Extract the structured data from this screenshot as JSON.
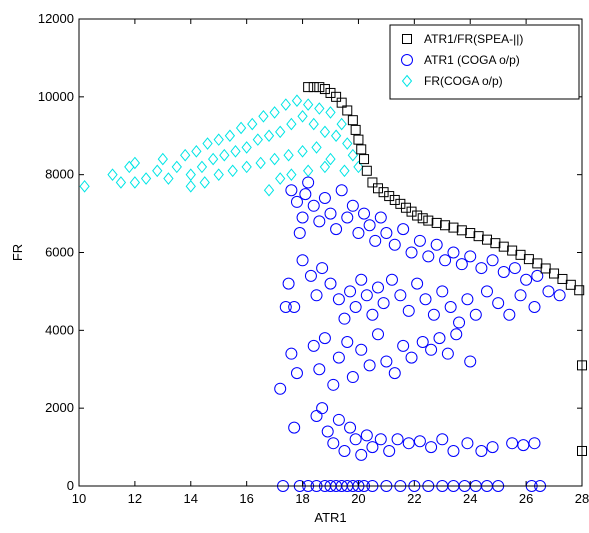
{
  "chart_data": {
    "type": "scatter",
    "xlabel": "ATR1",
    "ylabel": "FR",
    "xlim": [
      10,
      28
    ],
    "ylim": [
      0,
      12000
    ],
    "xticks": [
      10,
      12,
      14,
      16,
      18,
      20,
      22,
      24,
      26,
      28
    ],
    "yticks": [
      0,
      2000,
      4000,
      6000,
      8000,
      10000,
      12000
    ],
    "grid": false,
    "legend_position": "top-right",
    "series": [
      {
        "name": "ATR1/FR(SPEA-||)",
        "marker": "square",
        "color": "#000000",
        "points": [
          [
            18.2,
            10250
          ],
          [
            18.4,
            10250
          ],
          [
            18.6,
            10250
          ],
          [
            18.8,
            10200
          ],
          [
            19.0,
            10100
          ],
          [
            19.2,
            10000
          ],
          [
            19.4,
            9850
          ],
          [
            19.6,
            9650
          ],
          [
            19.8,
            9400
          ],
          [
            19.9,
            9150
          ],
          [
            20.0,
            8900
          ],
          [
            20.1,
            8650
          ],
          [
            20.2,
            8400
          ],
          [
            20.3,
            8100
          ],
          [
            20.5,
            7800
          ],
          [
            20.7,
            7650
          ],
          [
            20.9,
            7550
          ],
          [
            21.1,
            7450
          ],
          [
            21.3,
            7350
          ],
          [
            21.5,
            7250
          ],
          [
            21.7,
            7150
          ],
          [
            21.9,
            7050
          ],
          [
            22.1,
            6950
          ],
          [
            22.3,
            6880
          ],
          [
            22.5,
            6820
          ],
          [
            22.8,
            6760
          ],
          [
            23.1,
            6700
          ],
          [
            23.4,
            6640
          ],
          [
            23.7,
            6570
          ],
          [
            24.0,
            6500
          ],
          [
            24.3,
            6420
          ],
          [
            24.6,
            6330
          ],
          [
            24.9,
            6240
          ],
          [
            25.2,
            6150
          ],
          [
            25.5,
            6050
          ],
          [
            25.8,
            5940
          ],
          [
            26.1,
            5830
          ],
          [
            26.4,
            5720
          ],
          [
            26.7,
            5590
          ],
          [
            27.0,
            5460
          ],
          [
            27.3,
            5320
          ],
          [
            27.6,
            5170
          ],
          [
            27.9,
            5030
          ],
          [
            28.0,
            3100
          ],
          [
            28.0,
            900
          ]
        ]
      },
      {
        "name": "ATR1 (COGA o/p)",
        "marker": "circle",
        "color": "#0000ff",
        "points": [
          [
            17.6,
            7600
          ],
          [
            17.8,
            7300
          ],
          [
            18.0,
            6900
          ],
          [
            18.1,
            7500
          ],
          [
            17.9,
            6500
          ],
          [
            18.2,
            7800
          ],
          [
            18.4,
            7200
          ],
          [
            18.6,
            6800
          ],
          [
            18.8,
            7400
          ],
          [
            19.0,
            7000
          ],
          [
            19.2,
            6600
          ],
          [
            19.4,
            7600
          ],
          [
            19.6,
            6900
          ],
          [
            19.8,
            7200
          ],
          [
            20.0,
            6500
          ],
          [
            20.2,
            7000
          ],
          [
            20.4,
            6700
          ],
          [
            20.6,
            6300
          ],
          [
            20.8,
            6900
          ],
          [
            21.0,
            6500
          ],
          [
            21.3,
            6200
          ],
          [
            21.6,
            6600
          ],
          [
            21.9,
            6000
          ],
          [
            22.2,
            6300
          ],
          [
            22.5,
            5900
          ],
          [
            22.8,
            6200
          ],
          [
            23.1,
            5800
          ],
          [
            23.4,
            6000
          ],
          [
            23.7,
            5700
          ],
          [
            24.0,
            5900
          ],
          [
            24.4,
            5600
          ],
          [
            24.8,
            5800
          ],
          [
            25.2,
            5500
          ],
          [
            25.6,
            5600
          ],
          [
            26.0,
            5300
          ],
          [
            26.4,
            5400
          ],
          [
            26.8,
            5000
          ],
          [
            27.2,
            4900
          ],
          [
            17.5,
            5200
          ],
          [
            17.7,
            4600
          ],
          [
            18.0,
            5800
          ],
          [
            18.3,
            5400
          ],
          [
            18.5,
            4900
          ],
          [
            18.7,
            5600
          ],
          [
            19.0,
            5200
          ],
          [
            19.3,
            4800
          ],
          [
            19.5,
            4300
          ],
          [
            19.7,
            5000
          ],
          [
            19.9,
            4600
          ],
          [
            20.1,
            5300
          ],
          [
            20.3,
            4900
          ],
          [
            20.5,
            4400
          ],
          [
            20.7,
            5100
          ],
          [
            20.9,
            4700
          ],
          [
            21.2,
            5300
          ],
          [
            21.5,
            4900
          ],
          [
            21.8,
            4500
          ],
          [
            22.1,
            5200
          ],
          [
            22.4,
            4800
          ],
          [
            22.7,
            4400
          ],
          [
            23.0,
            5000
          ],
          [
            23.3,
            4600
          ],
          [
            23.6,
            4200
          ],
          [
            23.9,
            4800
          ],
          [
            24.2,
            4400
          ],
          [
            24.6,
            5000
          ],
          [
            25.0,
            4700
          ],
          [
            25.4,
            4400
          ],
          [
            25.8,
            4900
          ],
          [
            26.3,
            4600
          ],
          [
            17.4,
            4600
          ],
          [
            17.6,
            3400
          ],
          [
            17.8,
            2900
          ],
          [
            17.2,
            2500
          ],
          [
            17.7,
            1500
          ],
          [
            18.4,
            3600
          ],
          [
            18.6,
            3000
          ],
          [
            18.8,
            3800
          ],
          [
            19.1,
            2600
          ],
          [
            19.3,
            3300
          ],
          [
            19.6,
            3700
          ],
          [
            19.8,
            2800
          ],
          [
            20.1,
            3500
          ],
          [
            20.4,
            3100
          ],
          [
            20.7,
            3900
          ],
          [
            21.0,
            3200
          ],
          [
            21.3,
            2900
          ],
          [
            21.6,
            3600
          ],
          [
            21.9,
            3300
          ],
          [
            22.3,
            3700
          ],
          [
            22.6,
            3500
          ],
          [
            22.9,
            3800
          ],
          [
            23.2,
            3400
          ],
          [
            23.5,
            3900
          ],
          [
            24.0,
            3200
          ],
          [
            18.5,
            1800
          ],
          [
            18.7,
            2000
          ],
          [
            18.9,
            1400
          ],
          [
            19.1,
            1100
          ],
          [
            19.3,
            1700
          ],
          [
            19.5,
            900
          ],
          [
            19.7,
            1500
          ],
          [
            19.9,
            1200
          ],
          [
            20.1,
            800
          ],
          [
            20.3,
            1300
          ],
          [
            20.5,
            1000
          ],
          [
            20.8,
            1200
          ],
          [
            21.1,
            900
          ],
          [
            21.4,
            1200
          ],
          [
            21.8,
            1100
          ],
          [
            22.2,
            1150
          ],
          [
            22.6,
            1000
          ],
          [
            23.0,
            1200
          ],
          [
            23.4,
            900
          ],
          [
            23.9,
            1100
          ],
          [
            24.4,
            900
          ],
          [
            24.8,
            1000
          ],
          [
            25.5,
            1100
          ],
          [
            25.9,
            1050
          ],
          [
            26.3,
            1100
          ],
          [
            17.3,
            0
          ],
          [
            17.9,
            0
          ],
          [
            18.2,
            0
          ],
          [
            18.5,
            0
          ],
          [
            18.8,
            0
          ],
          [
            19.0,
            0
          ],
          [
            19.2,
            0
          ],
          [
            19.4,
            0
          ],
          [
            19.6,
            0
          ],
          [
            19.8,
            0
          ],
          [
            20.0,
            0
          ],
          [
            20.2,
            0
          ],
          [
            20.5,
            0
          ],
          [
            21.0,
            0
          ],
          [
            21.5,
            0
          ],
          [
            22.0,
            0
          ],
          [
            22.5,
            0
          ],
          [
            23.0,
            0
          ],
          [
            23.4,
            0
          ],
          [
            23.8,
            0
          ],
          [
            24.2,
            0
          ],
          [
            24.6,
            0
          ],
          [
            25.0,
            0
          ],
          [
            26.2,
            0
          ],
          [
            26.5,
            0
          ]
        ]
      },
      {
        "name": "FR(COGA o/p)",
        "marker": "diamond",
        "color": "#00e5e5",
        "points": [
          [
            10.2,
            7700
          ],
          [
            11.2,
            8000
          ],
          [
            11.5,
            7800
          ],
          [
            11.8,
            8200
          ],
          [
            12.0,
            8300
          ],
          [
            12.0,
            7800
          ],
          [
            12.4,
            7900
          ],
          [
            12.8,
            8100
          ],
          [
            13.0,
            8400
          ],
          [
            13.2,
            7900
          ],
          [
            13.5,
            8200
          ],
          [
            13.8,
            8500
          ],
          [
            14.0,
            8000
          ],
          [
            14.2,
            8600
          ],
          [
            14.4,
            8200
          ],
          [
            14.6,
            8800
          ],
          [
            14.8,
            8400
          ],
          [
            15.0,
            8900
          ],
          [
            15.2,
            8500
          ],
          [
            15.4,
            9000
          ],
          [
            15.6,
            8600
          ],
          [
            15.8,
            9200
          ],
          [
            16.0,
            8700
          ],
          [
            16.2,
            9300
          ],
          [
            16.4,
            8900
          ],
          [
            16.6,
            9500
          ],
          [
            16.8,
            9000
          ],
          [
            17.0,
            9600
          ],
          [
            17.2,
            9100
          ],
          [
            17.4,
            9800
          ],
          [
            17.6,
            9300
          ],
          [
            17.8,
            9900
          ],
          [
            18.0,
            9500
          ],
          [
            18.2,
            9800
          ],
          [
            18.4,
            9300
          ],
          [
            18.6,
            9700
          ],
          [
            18.8,
            9100
          ],
          [
            19.0,
            9600
          ],
          [
            19.2,
            9000
          ],
          [
            19.4,
            9300
          ],
          [
            19.6,
            8800
          ],
          [
            19.8,
            8500
          ],
          [
            20.0,
            8200
          ],
          [
            14.0,
            7700
          ],
          [
            14.5,
            7800
          ],
          [
            15.0,
            8000
          ],
          [
            15.5,
            8100
          ],
          [
            16.0,
            8200
          ],
          [
            16.5,
            8300
          ],
          [
            17.0,
            8400
          ],
          [
            17.5,
            8500
          ],
          [
            18.0,
            8600
          ],
          [
            18.5,
            8700
          ],
          [
            19.0,
            8400
          ],
          [
            19.5,
            8100
          ],
          [
            16.8,
            7600
          ],
          [
            17.2,
            7900
          ],
          [
            17.6,
            8000
          ],
          [
            18.2,
            8100
          ],
          [
            18.8,
            8200
          ]
        ]
      }
    ]
  }
}
